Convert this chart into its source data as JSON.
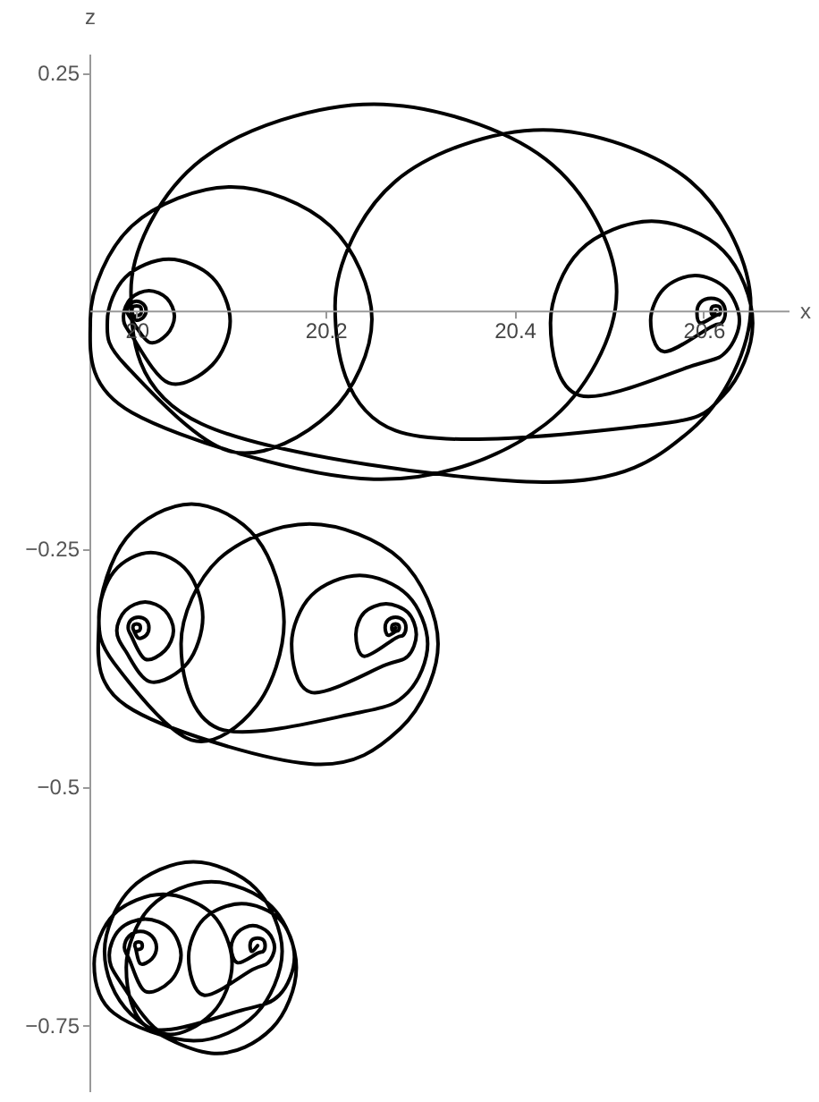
{
  "chart_data": {
    "type": "line",
    "xlabel": "x",
    "ylabel": "z",
    "xlim": [
      19.95,
      20.69
    ],
    "ylim": [
      -0.82,
      0.27
    ],
    "xticks": [
      {
        "value": 20,
        "label": "20"
      },
      {
        "value": 20.2,
        "label": "20.2"
      },
      {
        "value": 20.4,
        "label": "20.4"
      },
      {
        "value": 20.6,
        "label": "20.6"
      }
    ],
    "yticks": [
      {
        "value": 0.25,
        "label": "0.25"
      },
      {
        "value": -0.25,
        "label": "−0.25"
      },
      {
        "value": -0.5,
        "label": "−0.5"
      },
      {
        "value": -0.75,
        "label": "−0.75"
      }
    ],
    "grid": false,
    "legend": false,
    "marker": "none",
    "line_style": "solid",
    "series": [
      {
        "color": "#000000",
        "x": [
          20.0,
          20.004,
          20.005,
          20.004,
          20.0,
          19.996,
          19.995,
          19.996,
          20.0,
          20.007,
          20.01,
          20.007,
          20.0,
          19.993,
          19.99,
          19.993,
          20.013,
          20.032,
          20.04,
          20.032,
          20.013,
          19.994,
          19.986,
          19.994,
          20.034,
          20.08,
          20.099,
          20.08,
          20.034,
          19.988,
          19.969,
          19.988,
          20.1,
          20.205,
          20.249,
          20.205,
          20.1,
          19.995,
          19.951,
          19.995,
          20.251,
          20.433,
          20.508,
          20.433,
          20.251,
          20.069,
          19.994,
          20.069,
          20.43,
          20.586,
          20.65,
          20.586,
          20.43,
          20.274,
          20.21,
          20.274,
          20.545,
          20.621,
          20.652,
          20.621,
          20.545,
          20.469,
          20.438,
          20.469,
          20.591,
          20.624,
          20.638,
          20.624,
          20.591,
          20.558,
          20.544,
          20.558,
          20.608,
          20.619,
          20.623,
          20.619,
          20.608,
          20.597,
          20.593,
          20.597,
          20.613,
          20.617,
          20.618,
          20.617,
          20.613,
          20.609,
          20.608,
          20.609,
          20.613
        ],
        "values": [
          -0.005,
          -0.004,
          0,
          0.004,
          0.005,
          0.004,
          0,
          -0.004,
          -0.01,
          -0.007,
          0,
          0.007,
          0.01,
          0.007,
          0,
          -0.007,
          -0.033,
          -0.025,
          -0.006,
          0.013,
          0.021,
          0.013,
          -0.006,
          -0.025,
          -0.076,
          -0.057,
          -0.011,
          0.035,
          0.054,
          0.035,
          -0.011,
          -0.057,
          -0.148,
          -0.107,
          -0.009,
          0.089,
          0.13,
          0.089,
          -0.009,
          -0.107,
          -0.177,
          -0.119,
          0.02,
          0.159,
          0.217,
          0.159,
          0.02,
          -0.119,
          -0.18,
          -0.126,
          0.005,
          0.136,
          0.19,
          0.136,
          0.005,
          -0.126,
          -0.12,
          -0.089,
          -0.013,
          0.063,
          0.094,
          0.063,
          -0.013,
          -0.089,
          -0.057,
          -0.043,
          -0.01,
          0.023,
          0.037,
          0.023,
          -0.01,
          -0.043,
          -0.017,
          -0.013,
          -0.002,
          0.009,
          0.013,
          0.009,
          -0.002,
          -0.013,
          -0.005,
          -0.004,
          0,
          0.004,
          0.005,
          0.004,
          0,
          -0.004,
          0
        ]
      },
      {
        "color": "#000000",
        "x": [
          20.0,
          20.003,
          20.004,
          20.003,
          20.0,
          19.997,
          19.996,
          19.997,
          20.002,
          20.01,
          20.013,
          20.01,
          20.002,
          19.994,
          19.991,
          19.994,
          20.009,
          20.03,
          20.039,
          20.03,
          20.009,
          19.988,
          19.979,
          19.988,
          20.015,
          20.054,
          20.07,
          20.054,
          20.015,
          19.976,
          19.96,
          19.976,
          20.058,
          20.127,
          20.156,
          20.127,
          20.058,
          19.989,
          19.96,
          19.989,
          20.183,
          20.279,
          20.319,
          20.279,
          20.183,
          20.087,
          20.047,
          20.087,
          20.236,
          20.287,
          20.308,
          20.287,
          20.236,
          20.185,
          20.164,
          20.185,
          20.264,
          20.287,
          20.296,
          20.287,
          20.264,
          20.241,
          20.232,
          20.241,
          20.274,
          20.282,
          20.285,
          20.282,
          20.274,
          20.266,
          20.263,
          20.266,
          20.274,
          20.277,
          20.278,
          20.277,
          20.274,
          20.271,
          20.27,
          20.271,
          20.274
        ],
        "values": [
          -0.337,
          -0.336,
          -0.333,
          -0.33,
          -0.329,
          -0.33,
          -0.333,
          -0.336,
          -0.344,
          -0.341,
          -0.333,
          -0.325,
          -0.322,
          -0.325,
          -0.333,
          -0.341,
          -0.366,
          -0.357,
          -0.336,
          -0.315,
          -0.306,
          -0.315,
          -0.336,
          -0.357,
          -0.39,
          -0.37,
          -0.322,
          -0.274,
          -0.254,
          -0.274,
          -0.322,
          -0.37,
          -0.451,
          -0.415,
          -0.327,
          -0.239,
          -0.203,
          -0.239,
          -0.327,
          -0.415,
          -0.476,
          -0.439,
          -0.35,
          -0.261,
          -0.224,
          -0.261,
          -0.35,
          -0.439,
          -0.422,
          -0.401,
          -0.35,
          -0.299,
          -0.278,
          -0.299,
          -0.35,
          -0.401,
          -0.372,
          -0.363,
          -0.34,
          -0.317,
          -0.308,
          -0.317,
          -0.34,
          -0.363,
          -0.344,
          -0.341,
          -0.333,
          -0.325,
          -0.322,
          -0.325,
          -0.333,
          -0.341,
          -0.337,
          -0.336,
          -0.333,
          -0.33,
          -0.329,
          -0.33,
          -0.333,
          -0.336,
          -0.333
        ]
      },
      {
        "color": "#000000",
        "x": [
          20.002,
          20.005,
          20.006,
          20.005,
          20.002,
          19.999,
          19.998,
          19.999,
          20.004,
          20.016,
          20.021,
          20.016,
          20.004,
          19.992,
          19.987,
          19.992,
          20.009,
          20.036,
          20.047,
          20.036,
          20.009,
          19.982,
          19.971,
          19.982,
          20.028,
          20.08,
          20.101,
          20.08,
          20.028,
          19.976,
          19.955,
          19.976,
          20.06,
          20.126,
          20.154,
          20.126,
          20.06,
          19.994,
          19.966,
          19.994,
          20.079,
          20.143,
          20.169,
          20.143,
          20.079,
          20.015,
          19.989,
          20.015,
          20.111,
          20.151,
          20.167,
          20.151,
          20.111,
          20.071,
          20.055,
          20.071,
          20.123,
          20.139,
          20.146,
          20.139,
          20.123,
          20.107,
          20.1,
          20.107,
          20.128,
          20.134,
          20.136,
          20.134,
          20.128,
          20.122,
          20.12,
          20.122,
          20.128
        ],
        "values": [
          -0.671,
          -0.67,
          -0.667,
          -0.664,
          -0.663,
          -0.664,
          -0.667,
          -0.67,
          -0.686,
          -0.681,
          -0.669,
          -0.657,
          -0.652,
          -0.657,
          -0.669,
          -0.681,
          -0.715,
          -0.704,
          -0.677,
          -0.65,
          -0.639,
          -0.65,
          -0.677,
          -0.704,
          -0.759,
          -0.738,
          -0.686,
          -0.634,
          -0.613,
          -0.634,
          -0.686,
          -0.738,
          -0.767,
          -0.739,
          -0.673,
          -0.607,
          -0.579,
          -0.607,
          -0.673,
          -0.739,
          -0.78,
          -0.754,
          -0.69,
          -0.626,
          -0.6,
          -0.626,
          -0.69,
          -0.754,
          -0.735,
          -0.719,
          -0.679,
          -0.639,
          -0.623,
          -0.639,
          -0.679,
          -0.719,
          -0.692,
          -0.685,
          -0.669,
          -0.653,
          -0.646,
          -0.653,
          -0.669,
          -0.685,
          -0.675,
          -0.673,
          -0.667,
          -0.661,
          -0.659,
          -0.661,
          -0.667,
          -0.673,
          -0.667
        ]
      }
    ]
  }
}
